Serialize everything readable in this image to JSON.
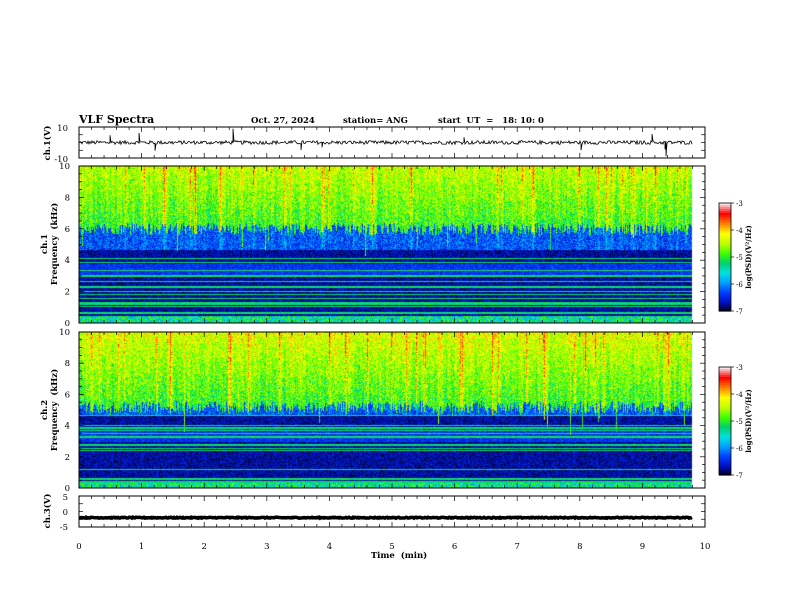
{
  "header": {
    "title": "VLF Spectra",
    "date": "Oct. 27, 2024",
    "station": "station= ANG",
    "start": "start  UT  =   18: 10: 0"
  },
  "chart_data": [
    {
      "id": "ch1-voltage",
      "type": "line",
      "ylabel": "ch.1(V)",
      "ylim": [
        -10,
        10
      ],
      "y_ticks": [
        "10",
        "-10"
      ],
      "x_unit_ticks": [
        0,
        1,
        2,
        3,
        4,
        5,
        6,
        7,
        8,
        9,
        10
      ],
      "baseline_v": 0,
      "noise_amplitude_v": 1.2,
      "x_end_min": 9.8
    },
    {
      "id": "ch1-spectrogram",
      "type": "heatmap",
      "ylabel_top": "ch.1",
      "ylabel": "Frequency  (kHz)",
      "ylim": [
        0,
        10
      ],
      "y_ticks": [
        "0",
        "2",
        "4",
        "6",
        "8",
        "10"
      ],
      "x_range_min": [
        0,
        9.8
      ],
      "colorbar": {
        "label": "log(PSD)(V²/Hz)",
        "range": [
          -7,
          -3
        ],
        "ticks": [
          "-3",
          "-4",
          "-5",
          "-6",
          "-7"
        ],
        "colors": [
          "#000000",
          "#0010c0",
          "#0040ff",
          "#00a0ff",
          "#00e0e0",
          "#00d070",
          "#40ff00",
          "#c0ff00",
          "#ffff00",
          "#ff8000",
          "#ff0000",
          "#ffe0e0"
        ]
      }
    },
    {
      "id": "ch2-spectrogram",
      "type": "heatmap",
      "ylabel_top": "ch.2",
      "ylabel": "Frequency  (kHz)",
      "ylim": [
        0,
        10
      ],
      "y_ticks": [
        "0",
        "2",
        "4",
        "6",
        "8",
        "10"
      ],
      "x_range_min": [
        0,
        9.8
      ],
      "colorbar": {
        "label": "log(PSD)(V²/Hz)",
        "range": [
          -7,
          -3
        ],
        "ticks": [
          "-3",
          "-4",
          "-5",
          "-6",
          "-7"
        ],
        "colors": [
          "#000000",
          "#0010c0",
          "#0040ff",
          "#00a0ff",
          "#00e0e0",
          "#00d070",
          "#40ff00",
          "#c0ff00",
          "#ffff00",
          "#ff8000",
          "#ff0000",
          "#ffe0e0"
        ]
      }
    },
    {
      "id": "ch3-voltage",
      "type": "line",
      "ylabel": "ch.3(V)",
      "ylim": [
        -5,
        5
      ],
      "y_ticks": [
        "5",
        "0",
        "-5"
      ],
      "baseline_v": -2,
      "noise_amplitude_v": 0.15,
      "x_end_min": 9.8
    }
  ],
  "x_axis": {
    "label": "Time  (min)",
    "ticks": [
      "0",
      "1",
      "2",
      "3",
      "4",
      "5",
      "6",
      "7",
      "8",
      "9",
      "10"
    ]
  }
}
